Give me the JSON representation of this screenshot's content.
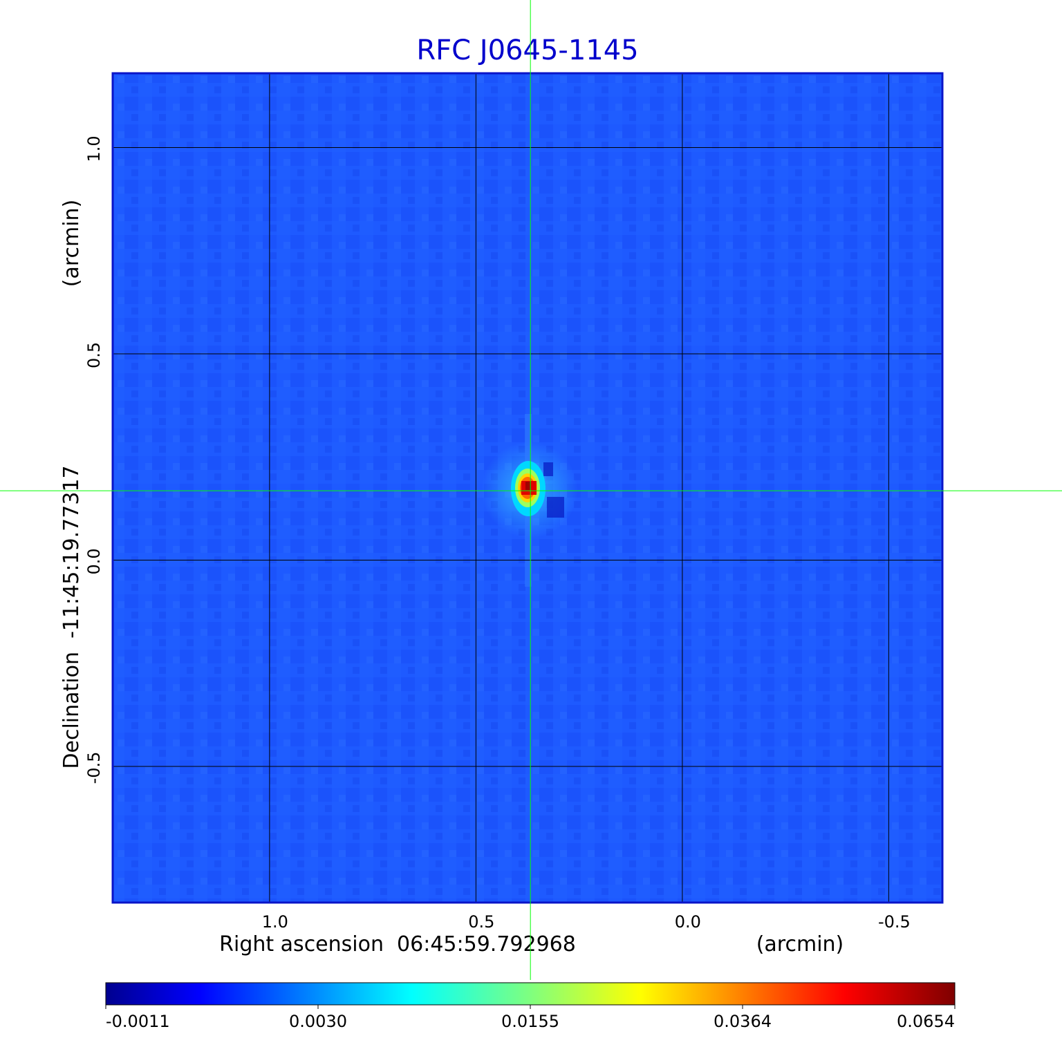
{
  "chart_data": {
    "type": "heatmap",
    "title": "RFC J0645-1145",
    "xlabel": "Right ascension  06:45:59.792968",
    "xunit": "(arcmin)",
    "ylabel": "Declination  -11:45:19.77317",
    "yunit": "(arcmin)",
    "xlim": [
      1.38,
      -0.63
    ],
    "ylim": [
      -0.83,
      1.18
    ],
    "x_ticks": [
      {
        "value": 1.0,
        "label": "1.0"
      },
      {
        "value": 0.5,
        "label": "0.5"
      },
      {
        "value": 0.0,
        "label": "0.0"
      },
      {
        "value": -0.5,
        "label": "-0.5"
      }
    ],
    "y_ticks": [
      {
        "value": 1.0,
        "label": "1.0"
      },
      {
        "value": 0.5,
        "label": "0.5"
      },
      {
        "value": 0.0,
        "label": "0.0"
      },
      {
        "value": -0.5,
        "label": "-0.5"
      }
    ],
    "grid": true,
    "crosshair": {
      "x": 0.368,
      "y": 0.168,
      "color": "#00ff00"
    },
    "source": {
      "x": 0.37,
      "y": 0.17,
      "peak": 0.0654
    },
    "colorbar": {
      "ticks": [
        "-0.0011",
        "0.0030",
        "0.0155",
        "0.0364",
        "0.0654"
      ],
      "colormap": "jet",
      "position": "bottom"
    },
    "colors": {
      "title": "#0000cc",
      "background_field": "#1e5aff",
      "grid": "#000000",
      "frame": "#0a14c8"
    }
  }
}
